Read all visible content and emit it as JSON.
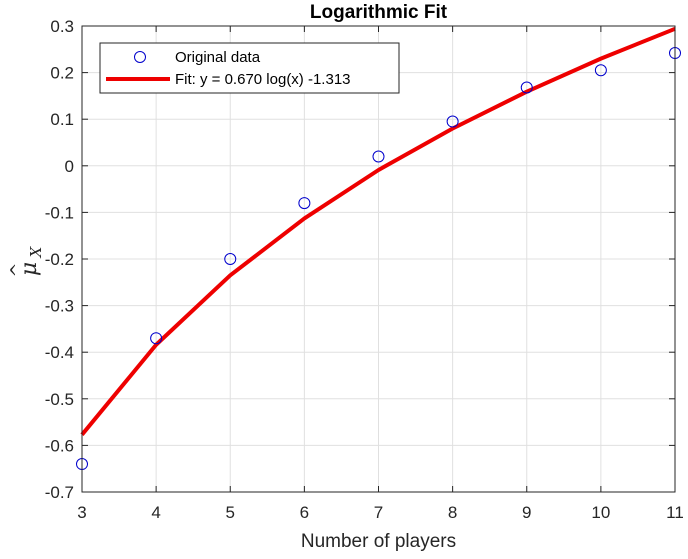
{
  "chart_data": {
    "type": "line",
    "title": "Logarithmic Fit",
    "xlabel": "Number of players",
    "ylabel_base": "μ",
    "ylabel_hat": "^",
    "ylabel_sub": "X",
    "xlim": [
      3,
      11
    ],
    "ylim": [
      -0.7,
      0.3
    ],
    "xticks": [
      3,
      4,
      5,
      6,
      7,
      8,
      9,
      10,
      11
    ],
    "yticks": [
      -0.7,
      -0.6,
      -0.5,
      -0.4,
      -0.3,
      -0.2,
      -0.1,
      0,
      0.1,
      0.2,
      0.3
    ],
    "grid": true,
    "legend_position": "top-left",
    "series": [
      {
        "name": "Original data",
        "kind": "scatter",
        "marker": "circle",
        "color": "#0000cc",
        "x": [
          3,
          4,
          5,
          6,
          7,
          8,
          9,
          10,
          11
        ],
        "y": [
          -0.64,
          -0.37,
          -0.2,
          -0.08,
          0.02,
          0.095,
          0.168,
          0.205,
          0.242
        ]
      },
      {
        "name": "Fit: y = 0.670 log(x) -1.313",
        "kind": "line",
        "color": "#ee0000",
        "x": [
          3,
          4,
          5,
          6,
          7,
          8,
          9,
          10,
          11
        ],
        "y": [
          -0.577,
          -0.384,
          -0.235,
          -0.113,
          -0.009,
          0.08,
          0.159,
          0.23,
          0.294
        ]
      }
    ]
  }
}
